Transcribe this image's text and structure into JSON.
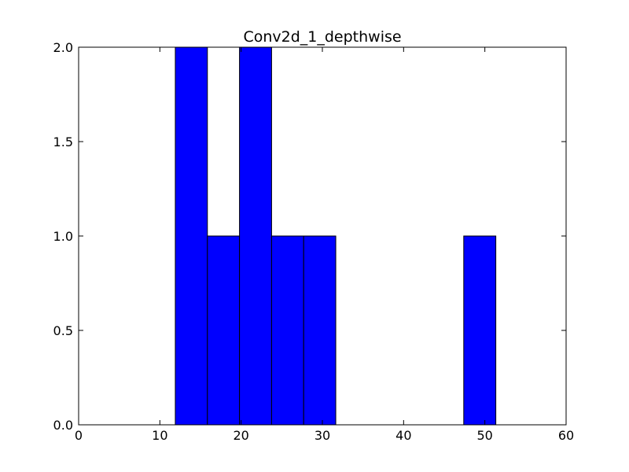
{
  "chart_data": {
    "type": "bar",
    "title": "Conv2d_1_depthwise",
    "xlabel": "",
    "ylabel": "",
    "xlim": [
      0,
      60
    ],
    "ylim": [
      0,
      2.0
    ],
    "x_ticks": [
      "0",
      "10",
      "20",
      "30",
      "40",
      "50",
      "60"
    ],
    "y_ticks": [
      "0.0",
      "0.5",
      "1.0",
      "1.5",
      "2.0"
    ],
    "grid": false,
    "bins": [
      {
        "start": 11.9,
        "end": 15.85,
        "count": 2
      },
      {
        "start": 15.85,
        "end": 19.8,
        "count": 1
      },
      {
        "start": 19.8,
        "end": 23.75,
        "count": 2
      },
      {
        "start": 23.75,
        "end": 27.7,
        "count": 1
      },
      {
        "start": 27.7,
        "end": 31.65,
        "count": 1
      },
      {
        "start": 47.4,
        "end": 51.35,
        "count": 1
      }
    ],
    "bar_color": "#0000ff",
    "edge_color": "#000000"
  }
}
